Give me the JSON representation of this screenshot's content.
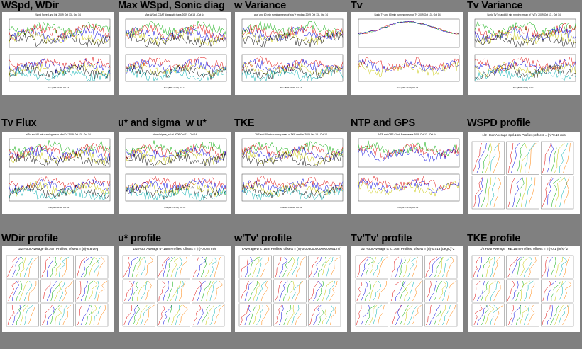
{
  "gallery": {
    "panels": [
      {
        "title": "WSpd, WDir",
        "kind": "ts",
        "subtitle": "Wind Speed and Dir. 2009 Oct 13 - Oct 14"
      },
      {
        "title": "Max WSpd, Sonic diag",
        "kind": "ts",
        "subtitle": "Max WSpd, CSAT diagnostic flags 2009 Oct 13 - Oct 14"
      },
      {
        "title": "w Variance",
        "kind": "ts",
        "subtitle": "w'w' and 60 min running mean of w'w' + median 2009 Oct 13 - Oct 14"
      },
      {
        "title": "Tv",
        "kind": "ts",
        "subtitle": "Sonic Tv and 60 min running mean of Tv 2009 Oct 13 - Oct 14"
      },
      {
        "title": "Tv Variance",
        "kind": "ts",
        "subtitle": "Sonic Tv'Tv' and 60 min running mean of Tv'Tv' 2009 Oct 13 - Oct 14"
      },
      {
        "title": "Tv Flux",
        "kind": "ts",
        "subtitle": "w'Tv' and 60 min running mean of w'Tv' 2009 Oct 13 - Oct 14"
      },
      {
        "title": "u* and sigma_w u*",
        "kind": "ts",
        "subtitle": "u* and sigma_w / u* 2009 Oct 13 - Oct 14"
      },
      {
        "title": "TKE",
        "kind": "ts",
        "subtitle": "TKE and 60 min running mean of TKE median 2009 Oct 13 - Oct 14"
      },
      {
        "title": "NTP and GPS",
        "kind": "ts",
        "subtitle": "NTP and GPS Clock Parameters 2009 Oct 13 - Oct 14"
      },
      {
        "title": "WSPD profile",
        "kind": "prof",
        "subtitle": "1/2 Hour Average spd.16m Profiles; offsets = (n)*0.18 m/s"
      },
      {
        "title": "WDir profile",
        "kind": "prof",
        "subtitle": "1/2 Hour Average dir.16m Profiles; offsets = (n)*6.8 deg"
      },
      {
        "title": "u* profile",
        "kind": "prof",
        "subtitle": "1/2 Hour Average u*.16m Profiles; offsets = (n)*0.028 m/s"
      },
      {
        "title": "w'Tv' profile",
        "kind": "prof",
        "subtitle": "r Average w'tc'.16m Profiles; offsets = (n)*0.00800000000000001 m/"
      },
      {
        "title": "Tv'Tv' profile",
        "kind": "prof",
        "subtitle": "1/2 Hour Average tc'tc'.16m Profiles; offsets = (n)*0.013 (degC)^2"
      },
      {
        "title": "TKE profile",
        "kind": "prof",
        "subtitle": "1/2 Hour Average TKE.16m Profiles; offsets = (n)*0.1 (m/s)^2"
      }
    ]
  }
}
